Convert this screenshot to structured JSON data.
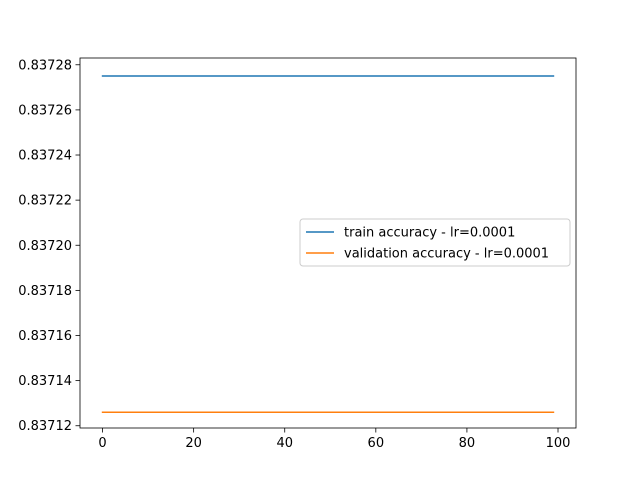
{
  "chart_data": {
    "type": "line",
    "title": "",
    "xlabel": "",
    "ylabel": "",
    "xlim": [
      -4.95,
      103.95
    ],
    "ylim": [
      0.837119,
      0.837283
    ],
    "x_ticks": [
      0,
      20,
      40,
      60,
      80,
      100
    ],
    "x_tick_labels": [
      "0",
      "20",
      "40",
      "60",
      "80",
      "100"
    ],
    "y_ticks": [
      0.83712,
      0.83714,
      0.83716,
      0.83718,
      0.8372,
      0.83722,
      0.83724,
      0.83726,
      0.83728
    ],
    "y_tick_labels": [
      "0.83712",
      "0.83714",
      "0.83716",
      "0.83718",
      "0.83720",
      "0.83722",
      "0.83724",
      "0.83726",
      "0.83728"
    ],
    "grid": false,
    "legend_position": "center-right",
    "series": [
      {
        "name": "train accuracy - lr=0.0001",
        "color": "#1f77b4",
        "x": [
          0,
          99
        ],
        "y": [
          0.837275,
          0.837275
        ]
      },
      {
        "name": "validation accuracy - lr=0.0001",
        "color": "#ff7f0e",
        "x": [
          0,
          99
        ],
        "y": [
          0.837126,
          0.837126
        ]
      }
    ]
  }
}
